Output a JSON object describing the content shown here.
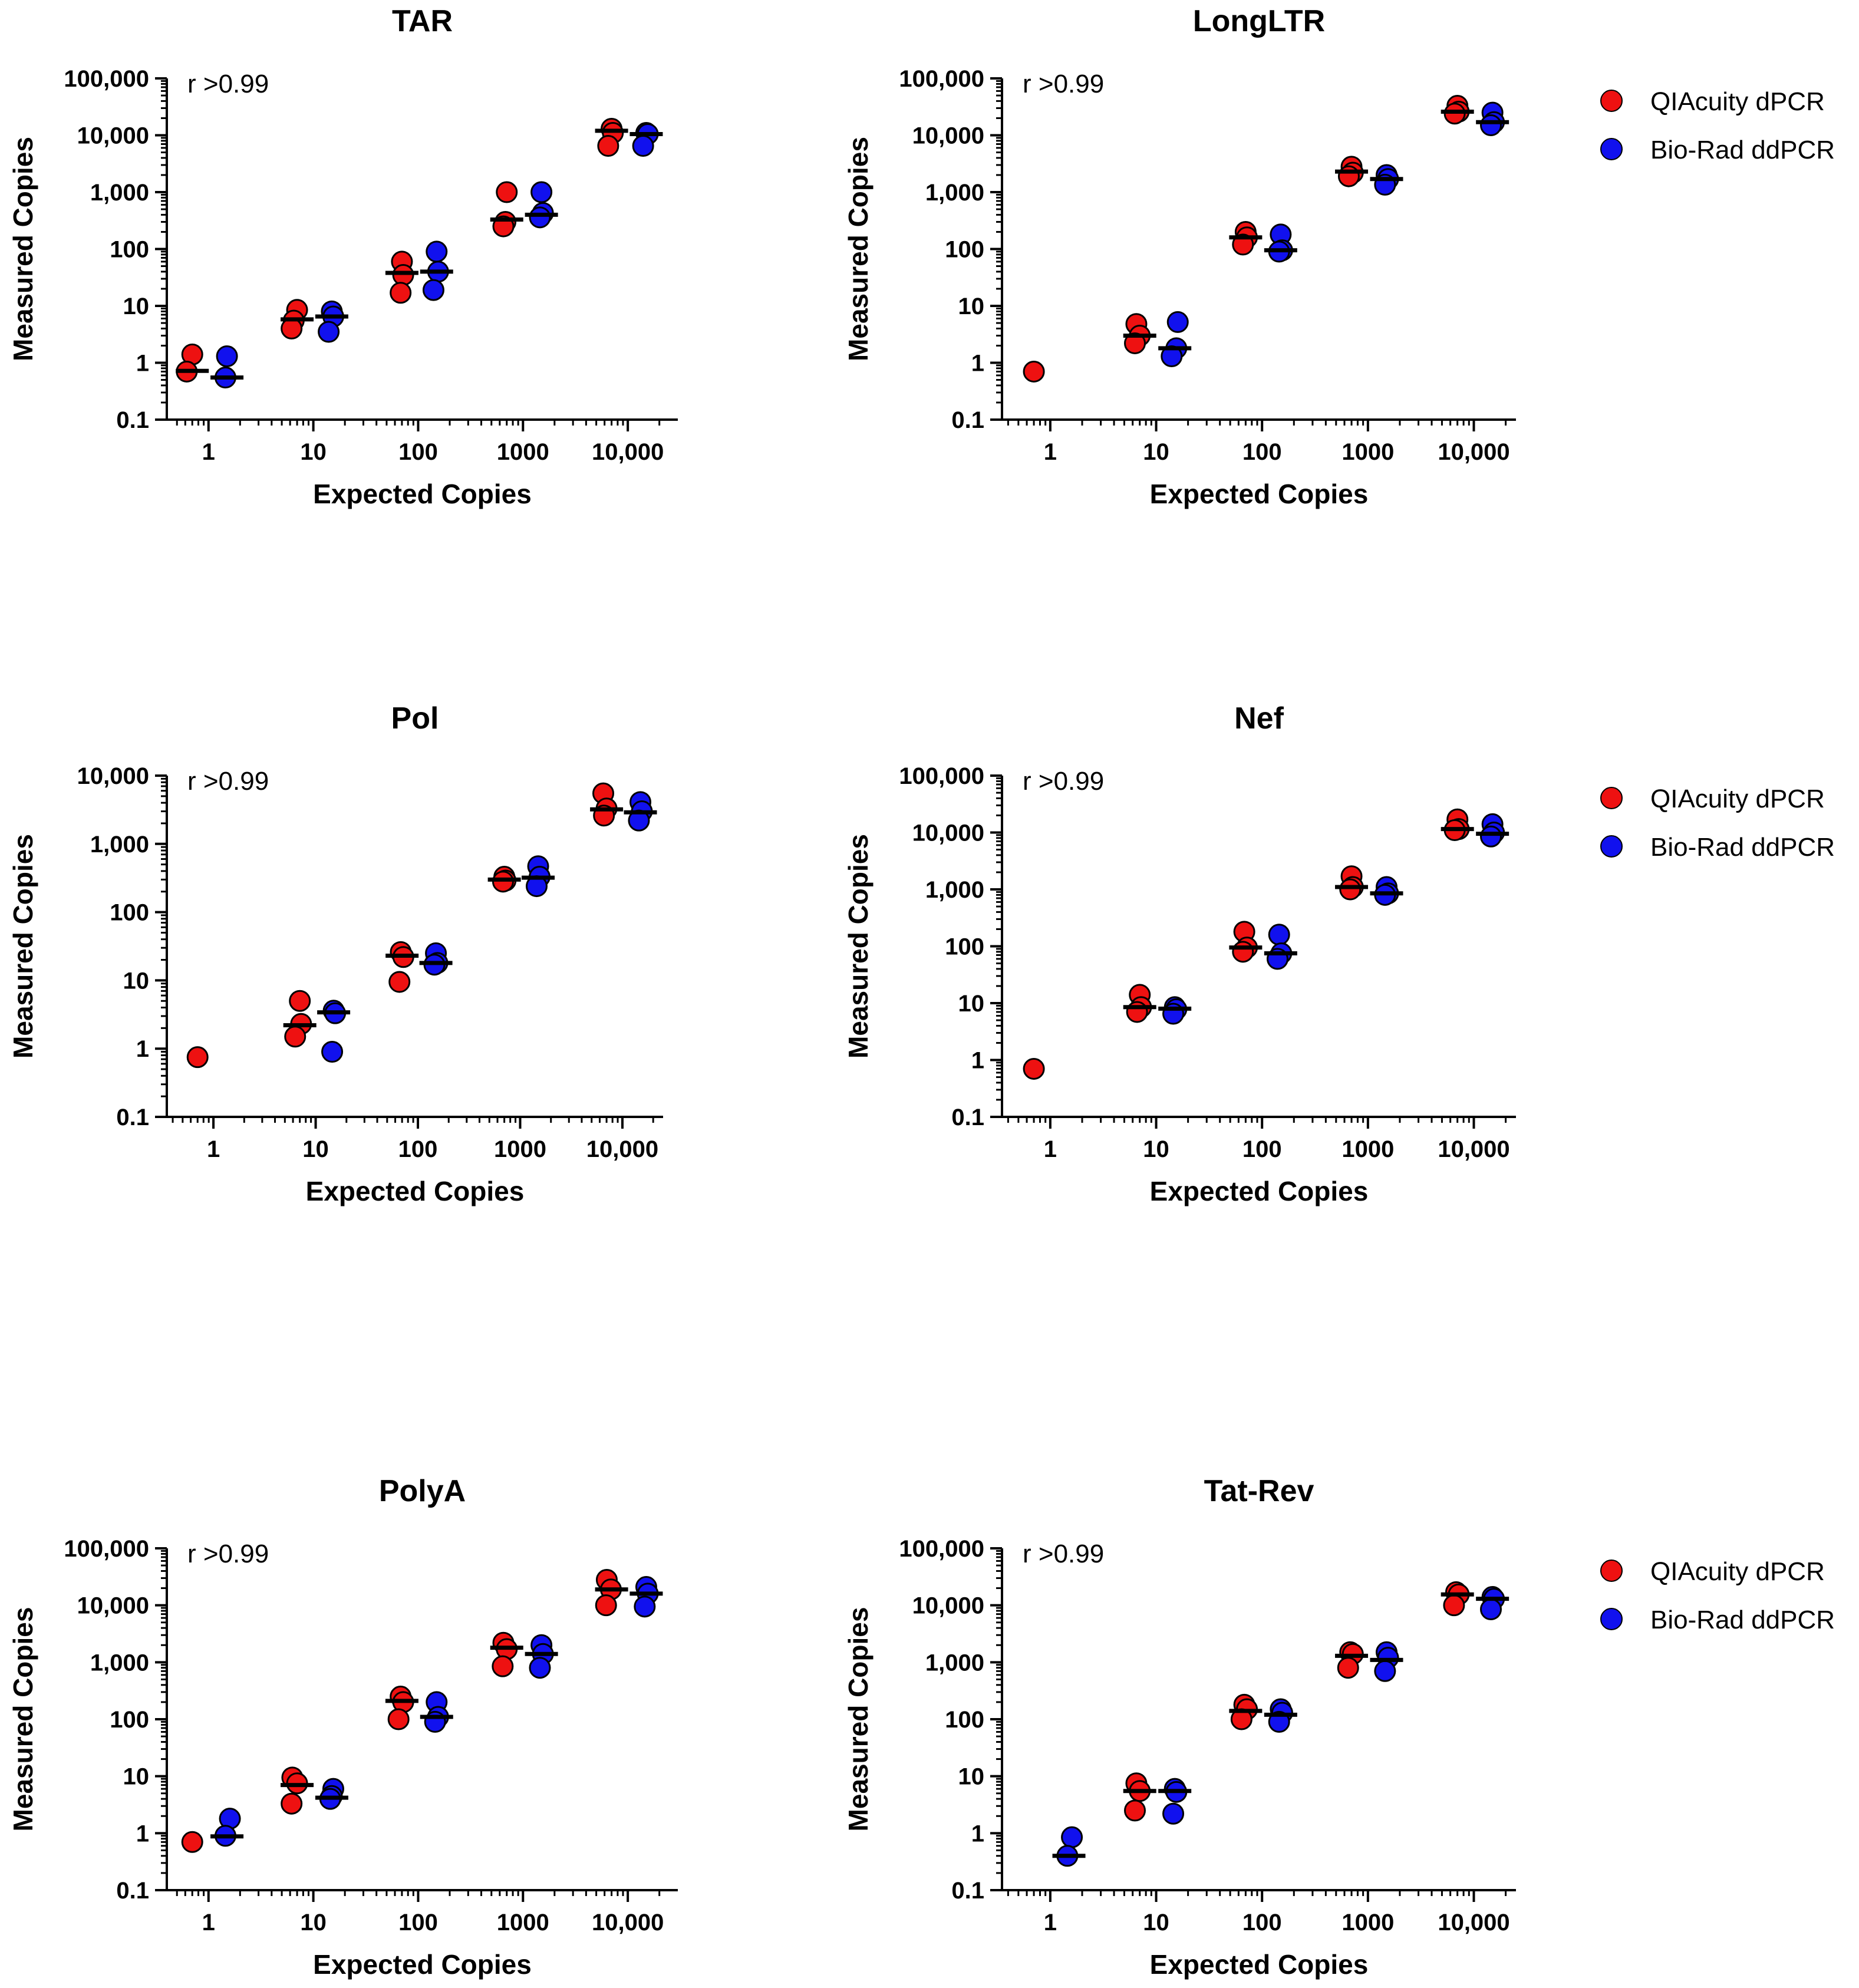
{
  "figure": {
    "legend": [
      {
        "label": "QIAcuity dPCR",
        "color": "#ee1111"
      },
      {
        "label": "Bio-Rad ddPCR",
        "color": "#1111ee"
      }
    ]
  },
  "chart_data": [
    {
      "type": "scatter",
      "title": "TAR",
      "annotation": "r >0.99",
      "xlabel": "Expected Copies",
      "ylabel": "Measured Copies",
      "xscale": "log",
      "yscale": "log",
      "xlim": [
        0.4,
        30000
      ],
      "ylim": [
        0.1,
        100000
      ],
      "xticks": [
        1,
        10,
        100,
        1000,
        10000
      ],
      "xtick_labels": [
        "1",
        "10",
        "100",
        "1000",
        "10,000"
      ],
      "yticks": [
        0.1,
        1,
        10,
        100,
        1000,
        10000,
        100000
      ],
      "ytick_labels": [
        "0.1",
        "1",
        "10",
        "100",
        "1,000",
        "10,000",
        "100,000"
      ],
      "show_legend": false,
      "series": [
        {
          "name": "QIAcuity dPCR",
          "color": "#ee1111",
          "x": [
            0.7,
            7,
            70,
            700,
            7000
          ],
          "points": [
            [
              0.7,
              1.4
            ],
            [
              0.62,
              0.7
            ],
            [
              7,
              8.5
            ],
            [
              6.5,
              5.5
            ],
            [
              6.2,
              4
            ],
            [
              70,
              60
            ],
            [
              72,
              35
            ],
            [
              68,
              17
            ],
            [
              700,
              1000
            ],
            [
              680,
              300
            ],
            [
              650,
              250
            ],
            [
              7000,
              13000
            ],
            [
              7200,
              11000
            ],
            [
              6500,
              6500
            ]
          ],
          "medians": [
            0.72,
            5.8,
            38,
            330,
            12000
          ]
        },
        {
          "name": "Bio-Rad ddPCR",
          "color": "#1111ee",
          "x": [
            1.5,
            15,
            150,
            1500,
            15000
          ],
          "points": [
            [
              1.5,
              1.3
            ],
            [
              1.45,
              0.55
            ],
            [
              15,
              8
            ],
            [
              15.5,
              6.5
            ],
            [
              14,
              3.5
            ],
            [
              150,
              90
            ],
            [
              155,
              40
            ],
            [
              140,
              19
            ],
            [
              1500,
              1000
            ],
            [
              1550,
              430
            ],
            [
              1450,
              360
            ],
            [
              15000,
              11000
            ],
            [
              15500,
              10500
            ],
            [
              14000,
              6500
            ]
          ],
          "medians": [
            0.55,
            6.5,
            40,
            400,
            10500
          ]
        }
      ]
    },
    {
      "type": "scatter",
      "title": "LongLTR",
      "annotation": "r >0.99",
      "xlabel": "Expected Copies",
      "ylabel": "Measured Copies",
      "xscale": "log",
      "yscale": "log",
      "xlim": [
        0.35,
        25000
      ],
      "ylim": [
        0.1,
        100000
      ],
      "xticks": [
        1,
        10,
        100,
        1000,
        10000
      ],
      "xtick_labels": [
        "1",
        "10",
        "100",
        "1000",
        "10,000"
      ],
      "yticks": [
        0.1,
        1,
        10,
        100,
        1000,
        10000,
        100000
      ],
      "ytick_labels": [
        "0.1",
        "1",
        "10",
        "100",
        "1,000",
        "10,000",
        "100,000"
      ],
      "show_legend": true,
      "series": [
        {
          "name": "QIAcuity dPCR",
          "color": "#ee1111",
          "x": [
            0.7,
            7,
            70,
            700,
            7000
          ],
          "points": [
            [
              0.7,
              0.7
            ],
            [
              6.5,
              4.8
            ],
            [
              7,
              3
            ],
            [
              6.3,
              2.2
            ],
            [
              70,
              200
            ],
            [
              72,
              160
            ],
            [
              66,
              120
            ],
            [
              700,
              2800
            ],
            [
              720,
              2200
            ],
            [
              660,
              1900
            ],
            [
              7000,
              33000
            ],
            [
              7200,
              26000
            ],
            [
              6600,
              24000
            ]
          ],
          "medians": [
            null,
            3,
            160,
            2300,
            26000
          ]
        },
        {
          "name": "Bio-Rad ddPCR",
          "color": "#1111ee",
          "x": [
            1.5,
            15,
            150,
            1500,
            15000
          ],
          "points": [
            [
              16,
              5.2
            ],
            [
              15.5,
              1.8
            ],
            [
              14,
              1.3
            ],
            [
              150,
              180
            ],
            [
              155,
              95
            ],
            [
              145,
              90
            ],
            [
              1500,
              2000
            ],
            [
              1550,
              1700
            ],
            [
              1450,
              1350
            ],
            [
              15000,
              25000
            ],
            [
              15500,
              17000
            ],
            [
              14500,
              15000
            ]
          ],
          "medians": [
            null,
            1.8,
            95,
            1700,
            17000
          ]
        }
      ]
    },
    {
      "type": "scatter",
      "title": "Pol",
      "annotation": "r >0.99",
      "xlabel": "Expected Copies",
      "ylabel": "Measured Copies",
      "xscale": "log",
      "yscale": "log",
      "xlim": [
        0.35,
        25000
      ],
      "ylim": [
        0.1,
        10000
      ],
      "xticks": [
        1,
        10,
        100,
        1000,
        10000
      ],
      "xtick_labels": [
        "1",
        "10",
        "100",
        "1000",
        "10,000"
      ],
      "yticks": [
        0.1,
        1,
        10,
        100,
        1000,
        10000
      ],
      "ytick_labels": [
        "0.1",
        "1",
        "10",
        "100",
        "1,000",
        "10,000"
      ],
      "show_legend": false,
      "series": [
        {
          "name": "QIAcuity dPCR",
          "color": "#ee1111",
          "x": [
            0.7,
            7,
            70,
            700,
            7000
          ],
          "points": [
            [
              0.7,
              0.75
            ],
            [
              7,
              5
            ],
            [
              7.2,
              2.3
            ],
            [
              6.3,
              1.5
            ],
            [
              68,
              26
            ],
            [
              72,
              22
            ],
            [
              66,
              9.5
            ],
            [
              700,
              330
            ],
            [
              720,
              290
            ],
            [
              680,
              280
            ],
            [
              6500,
              5500
            ],
            [
              7000,
              3300
            ],
            [
              6600,
              2600
            ]
          ],
          "medians": [
            null,
            2.2,
            23,
            300,
            3200
          ]
        },
        {
          "name": "Bio-Rad ddPCR",
          "color": "#1111ee",
          "x": [
            1.5,
            15,
            150,
            1500,
            15000
          ],
          "points": [
            [
              15,
              3.6
            ],
            [
              15.5,
              3.3
            ],
            [
              14.5,
              0.9
            ],
            [
              150,
              25
            ],
            [
              155,
              18
            ],
            [
              145,
              17
            ],
            [
              1500,
              470
            ],
            [
              1550,
              330
            ],
            [
              1450,
              240
            ],
            [
              15000,
              4100
            ],
            [
              15500,
              3000
            ],
            [
              14500,
              2200
            ]
          ],
          "medians": [
            null,
            3.4,
            18,
            320,
            2900
          ]
        }
      ]
    },
    {
      "type": "scatter",
      "title": "Nef",
      "annotation": "r >0.99",
      "xlabel": "Expected Copies",
      "ylabel": "Measured Copies",
      "xscale": "log",
      "yscale": "log",
      "xlim": [
        0.35,
        25000
      ],
      "ylim": [
        0.1,
        100000
      ],
      "xticks": [
        1,
        10,
        100,
        1000,
        10000
      ],
      "xtick_labels": [
        "1",
        "10",
        "100",
        "1000",
        "10,000"
      ],
      "yticks": [
        0.1,
        1,
        10,
        100,
        1000,
        10000,
        100000
      ],
      "ytick_labels": [
        "0.1",
        "1",
        "10",
        "100",
        "1,000",
        "10,000",
        "100,000"
      ],
      "show_legend": true,
      "series": [
        {
          "name": "QIAcuity dPCR",
          "color": "#ee1111",
          "x": [
            0.7,
            7,
            70,
            700,
            7000
          ],
          "points": [
            [
              0.7,
              0.7
            ],
            [
              7,
              14
            ],
            [
              7.2,
              8.5
            ],
            [
              6.6,
              7
            ],
            [
              68,
              180
            ],
            [
              72,
              95
            ],
            [
              66,
              80
            ],
            [
              700,
              1700
            ],
            [
              720,
              1100
            ],
            [
              680,
              1000
            ],
            [
              7000,
              17000
            ],
            [
              7200,
              11500
            ],
            [
              6600,
              11000
            ]
          ],
          "medians": [
            null,
            8.5,
            95,
            1100,
            11500
          ]
        },
        {
          "name": "Bio-Rad ddPCR",
          "color": "#1111ee",
          "x": [
            1.5,
            15,
            150,
            1500,
            15000
          ],
          "points": [
            [
              15,
              8.5
            ],
            [
              15.5,
              7.8
            ],
            [
              14.5,
              6.5
            ],
            [
              145,
              160
            ],
            [
              152,
              75
            ],
            [
              140,
              60
            ],
            [
              1500,
              1100
            ],
            [
              1550,
              850
            ],
            [
              1450,
              800
            ],
            [
              15000,
              14000
            ],
            [
              15500,
              10000
            ],
            [
              14500,
              8500
            ]
          ],
          "medians": [
            null,
            8,
            75,
            850,
            9500
          ]
        }
      ]
    },
    {
      "type": "scatter",
      "title": "PolyA",
      "annotation": "r >0.99",
      "xlabel": "Expected Copies",
      "ylabel": "Measured Copies",
      "xscale": "log",
      "yscale": "log",
      "xlim": [
        0.4,
        30000
      ],
      "ylim": [
        0.1,
        100000
      ],
      "xticks": [
        1,
        10,
        100,
        1000,
        10000
      ],
      "xtick_labels": [
        "1",
        "10",
        "100",
        "1000",
        "10,000"
      ],
      "yticks": [
        0.1,
        1,
        10,
        100,
        1000,
        10000,
        100000
      ],
      "ytick_labels": [
        "0.1",
        "1",
        "10",
        "100",
        "1,000",
        "10,000",
        "100,000"
      ],
      "show_legend": false,
      "series": [
        {
          "name": "QIAcuity dPCR",
          "color": "#ee1111",
          "x": [
            0.7,
            7,
            70,
            700,
            7000
          ],
          "points": [
            [
              0.7,
              0.7
            ],
            [
              6.3,
              9.5
            ],
            [
              7,
              7.5
            ],
            [
              6.2,
              3.3
            ],
            [
              68,
              250
            ],
            [
              72,
              200
            ],
            [
              65,
              100
            ],
            [
              650,
              2200
            ],
            [
              700,
              1700
            ],
            [
              640,
              850
            ],
            [
              6300,
              28000
            ],
            [
              6900,
              19000
            ],
            [
              6200,
              10000
            ]
          ],
          "medians": [
            null,
            7,
            210,
            1800,
            19000
          ]
        },
        {
          "name": "Bio-Rad ddPCR",
          "color": "#1111ee",
          "x": [
            1.5,
            15,
            150,
            1500,
            15000
          ],
          "points": [
            [
              1.6,
              1.8
            ],
            [
              1.45,
              0.9
            ],
            [
              15.5,
              6
            ],
            [
              15,
              4.5
            ],
            [
              14.5,
              4
            ],
            [
              150,
              200
            ],
            [
              155,
              110
            ],
            [
              145,
              90
            ],
            [
              1500,
              2000
            ],
            [
              1550,
              1400
            ],
            [
              1450,
              800
            ],
            [
              15000,
              21000
            ],
            [
              15500,
              16000
            ],
            [
              14500,
              9500
            ]
          ],
          "medians": [
            0.88,
            4.2,
            110,
            1400,
            16000
          ]
        }
      ]
    },
    {
      "type": "scatter",
      "title": "Tat-Rev",
      "annotation": "r >0.99",
      "xlabel": "Expected Copies",
      "ylabel": "Measured Copies",
      "xscale": "log",
      "yscale": "log",
      "xlim": [
        0.35,
        25000
      ],
      "ylim": [
        0.1,
        100000
      ],
      "xticks": [
        1,
        10,
        100,
        1000,
        10000
      ],
      "xtick_labels": [
        "1",
        "10",
        "100",
        "1000",
        "10,000"
      ],
      "yticks": [
        0.1,
        1,
        10,
        100,
        1000,
        10000,
        100000
      ],
      "ytick_labels": [
        "0.1",
        "1",
        "10",
        "100",
        "1,000",
        "10,000",
        "100,000"
      ],
      "show_legend": true,
      "series": [
        {
          "name": "QIAcuity dPCR",
          "color": "#ee1111",
          "x": [
            0.7,
            7,
            70,
            700,
            7000
          ],
          "points": [
            [
              6.5,
              7.5
            ],
            [
              7,
              5.5
            ],
            [
              6.3,
              2.5
            ],
            [
              68,
              180
            ],
            [
              72,
              150
            ],
            [
              64,
              100
            ],
            [
              680,
              1500
            ],
            [
              720,
              1400
            ],
            [
              650,
              800
            ],
            [
              6800,
              17000
            ],
            [
              7200,
              15500
            ],
            [
              6500,
              10000
            ]
          ],
          "medians": [
            null,
            5.5,
            140,
            1300,
            15500
          ]
        },
        {
          "name": "Bio-Rad ddPCR",
          "color": "#1111ee",
          "x": [
            1.5,
            15,
            150,
            1500,
            15000
          ],
          "points": [
            [
              1.6,
              0.85
            ],
            [
              1.45,
              0.4
            ],
            [
              15,
              6
            ],
            [
              15.5,
              5.3
            ],
            [
              14.5,
              2.2
            ],
            [
              150,
              150
            ],
            [
              155,
              130
            ],
            [
              145,
              90
            ],
            [
              1500,
              1500
            ],
            [
              1550,
              1200
            ],
            [
              1450,
              700
            ],
            [
              15000,
              14000
            ],
            [
              15500,
              13000
            ],
            [
              14500,
              8500
            ]
          ],
          "medians": [
            0.4,
            5.5,
            120,
            1100,
            13000
          ]
        }
      ]
    }
  ]
}
